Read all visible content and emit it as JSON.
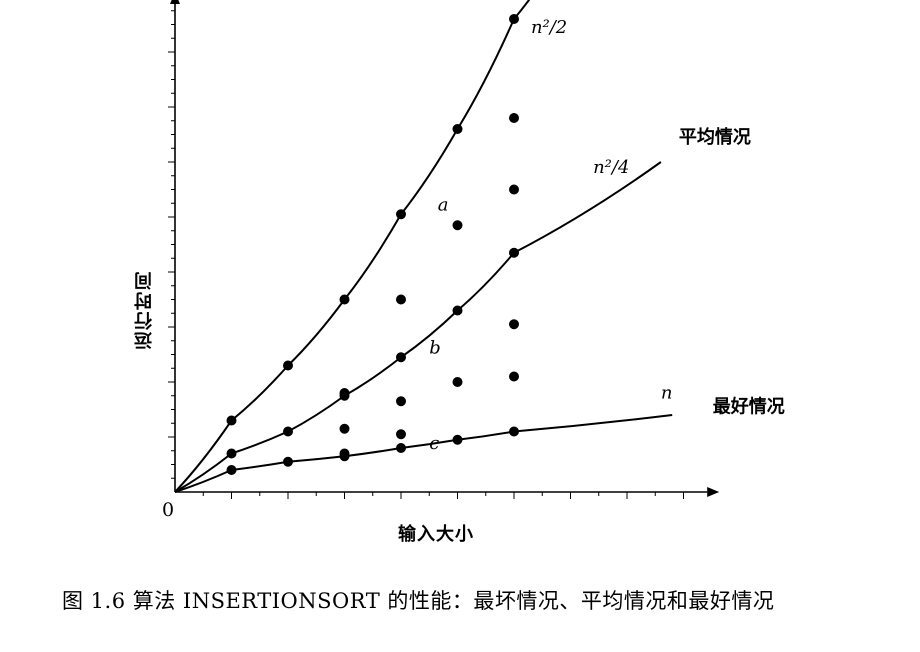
{
  "chart_data": {
    "type": "line",
    "xlabel": "输入大小",
    "ylabel": "运行时间",
    "origin_label": "0",
    "x": [
      1,
      2,
      3,
      4,
      5,
      6
    ],
    "series": [
      {
        "name": "最坏情况",
        "curve_label": "n²/2",
        "point_label": "a",
        "values": [
          1.3,
          2.3,
          3.5,
          5.05,
          6.6,
          8.6
        ]
      },
      {
        "name": "平均情况",
        "curve_label": "n²/4",
        "point_label": "b",
        "values": [
          0.7,
          1.1,
          1.75,
          2.45,
          3.3,
          4.35
        ]
      },
      {
        "name": "最好情况",
        "curve_label": "n",
        "point_label": "c",
        "values": [
          0.4,
          0.55,
          0.65,
          0.8,
          0.95,
          1.1
        ]
      }
    ],
    "scatter_points": [
      {
        "x": 3,
        "y": 1.8
      },
      {
        "x": 3,
        "y": 1.15
      },
      {
        "x": 3,
        "y": 0.7
      },
      {
        "x": 4,
        "y": 3.5
      },
      {
        "x": 4,
        "y": 1.65
      },
      {
        "x": 4,
        "y": 1.05
      },
      {
        "x": 5,
        "y": 4.85
      },
      {
        "x": 5,
        "y": 2.0
      },
      {
        "x": 6,
        "y": 6.8
      },
      {
        "x": 6,
        "y": 5.5
      },
      {
        "x": 6,
        "y": 3.05
      },
      {
        "x": 6,
        "y": 2.1
      }
    ],
    "xlim": [
      0,
      8.8
    ],
    "ylim": [
      0,
      8.6
    ],
    "grid": false,
    "legend": "curve labels at line ends",
    "colors": {
      "line": "#000000",
      "point": "#000000"
    }
  },
  "caption": "图 1.6 算法 INSERTIONSORT 的性能：最坏情况、平均情况和最好情况"
}
